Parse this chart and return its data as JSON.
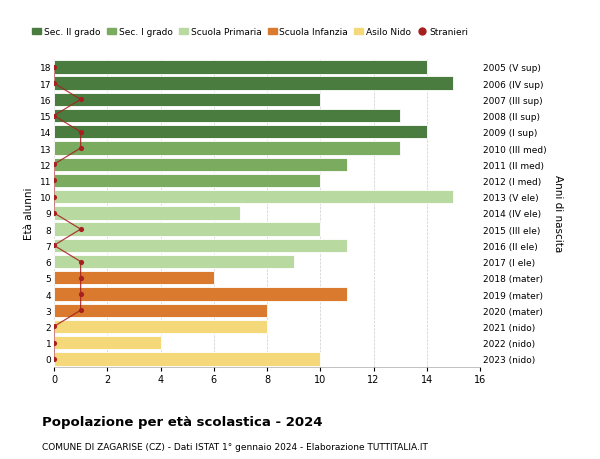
{
  "ages": [
    18,
    17,
    16,
    15,
    14,
    13,
    12,
    11,
    10,
    9,
    8,
    7,
    6,
    5,
    4,
    3,
    2,
    1,
    0
  ],
  "right_labels": [
    "2005 (V sup)",
    "2006 (IV sup)",
    "2007 (III sup)",
    "2008 (II sup)",
    "2009 (I sup)",
    "2010 (III med)",
    "2011 (II med)",
    "2012 (I med)",
    "2013 (V ele)",
    "2014 (IV ele)",
    "2015 (III ele)",
    "2016 (II ele)",
    "2017 (I ele)",
    "2018 (mater)",
    "2019 (mater)",
    "2020 (mater)",
    "2021 (nido)",
    "2022 (nido)",
    "2023 (nido)"
  ],
  "bar_values": [
    14,
    15,
    10,
    13,
    14,
    13,
    11,
    10,
    15,
    7,
    10,
    11,
    9,
    6,
    11,
    8,
    8,
    4,
    10
  ],
  "bar_colors": [
    "#4a7c3f",
    "#4a7c3f",
    "#4a7c3f",
    "#4a7c3f",
    "#4a7c3f",
    "#7aab5e",
    "#7aab5e",
    "#7aab5e",
    "#b8d9a0",
    "#b8d9a0",
    "#b8d9a0",
    "#b8d9a0",
    "#b8d9a0",
    "#d97a2e",
    "#d97a2e",
    "#d97a2e",
    "#f5d87a",
    "#f5d87a",
    "#f5d87a"
  ],
  "stranieri_values": [
    0,
    0,
    1,
    0,
    1,
    1,
    0,
    0,
    0,
    0,
    1,
    0,
    1,
    1,
    1,
    1,
    0,
    0,
    0
  ],
  "stranieri_color": "#a62020",
  "legend_labels": [
    "Sec. II grado",
    "Sec. I grado",
    "Scuola Primaria",
    "Scuola Infanzia",
    "Asilo Nido",
    "Stranieri"
  ],
  "legend_colors": [
    "#4a7c3f",
    "#7aab5e",
    "#b8d9a0",
    "#d97a2e",
    "#f5d87a",
    "#a62020"
  ],
  "title": "Popolazione per età scolastica - 2024",
  "subtitle": "COMUNE DI ZAGARISE (CZ) - Dati ISTAT 1° gennaio 2024 - Elaborazione TUTTITALIA.IT",
  "ylabel_left": "Età alunni",
  "ylabel_right": "Anni di nascita",
  "xlim": [
    0,
    16
  ],
  "background_color": "#ffffff",
  "grid_color": "#cccccc"
}
